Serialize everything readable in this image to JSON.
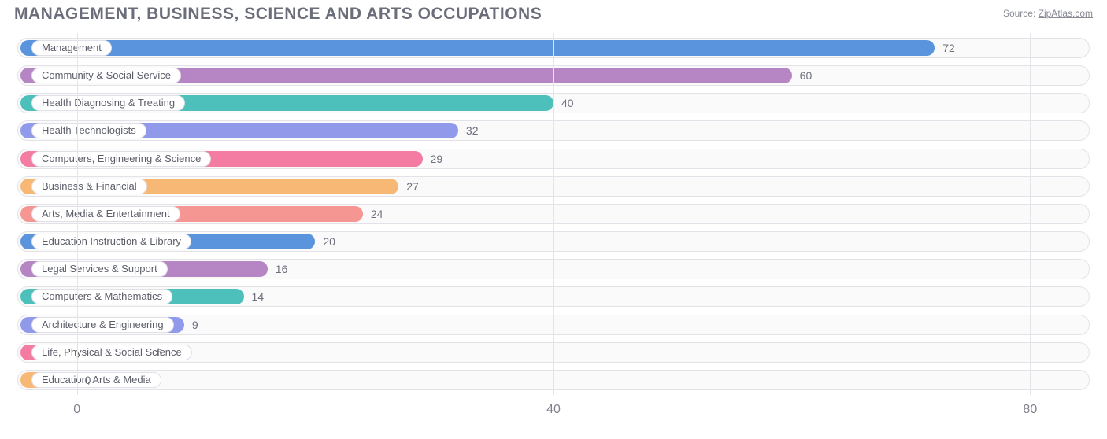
{
  "title": "MANAGEMENT, BUSINESS, SCIENCE AND ARTS OCCUPATIONS",
  "source_label": "Source:",
  "source_link_text": "ZipAtlas.com",
  "chart": {
    "type": "bar-horizontal",
    "xmin": -5,
    "xmax": 85,
    "xticks": [
      0,
      40,
      80
    ],
    "grid_color": "#e4e4ea",
    "track_bg": "#fafafb",
    "track_border": "#e2e2e8",
    "label_color": "#5b5d68",
    "value_color": "#6d6f7a",
    "title_color": "#6b6e7a",
    "xlabel_color": "#7f818c",
    "label_fontsize": 13,
    "value_fontsize": 14,
    "items": [
      {
        "label": "Management",
        "value": 72,
        "color": "#5a94dc"
      },
      {
        "label": "Community & Social Service",
        "value": 60,
        "color": "#b686c4"
      },
      {
        "label": "Health Diagnosing & Treating",
        "value": 40,
        "color": "#4ec0bb"
      },
      {
        "label": "Health Technologists",
        "value": 32,
        "color": "#9099ea"
      },
      {
        "label": "Computers, Engineering & Science",
        "value": 29,
        "color": "#f47ba2"
      },
      {
        "label": "Business & Financial",
        "value": 27,
        "color": "#f7b876"
      },
      {
        "label": "Arts, Media & Entertainment",
        "value": 24,
        "color": "#f59693"
      },
      {
        "label": "Education Instruction & Library",
        "value": 20,
        "color": "#5a94dc"
      },
      {
        "label": "Legal Services & Support",
        "value": 16,
        "color": "#b686c4"
      },
      {
        "label": "Computers & Mathematics",
        "value": 14,
        "color": "#4ec0bb"
      },
      {
        "label": "Architecture & Engineering",
        "value": 9,
        "color": "#9099ea"
      },
      {
        "label": "Life, Physical & Social Science",
        "value": 6,
        "color": "#f47ba2"
      },
      {
        "label": "Education, Arts & Media",
        "value": 0,
        "color": "#f7b876"
      }
    ]
  }
}
